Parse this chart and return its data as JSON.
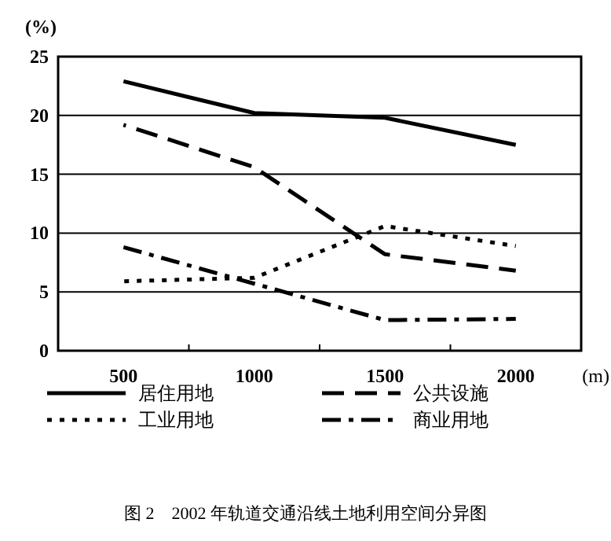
{
  "chart_data": {
    "type": "line",
    "title": "图 2　2002 年轨道交通沿线土地利用空间分异图",
    "ylabel": "(%)",
    "xlabel": "(m)",
    "categories": [
      "500",
      "1000",
      "1500",
      "2000"
    ],
    "ylim": [
      0,
      25
    ],
    "yticks": [
      0,
      5,
      10,
      15,
      20,
      25
    ],
    "grid": "y",
    "legend": "bottom",
    "marker": "none",
    "series": [
      {
        "name": "居住用地",
        "color": "#000000",
        "line_style": "solid",
        "values": [
          22.9,
          20.2,
          19.8,
          17.5
        ]
      },
      {
        "name": "公共设施",
        "color": "#000000",
        "line_style": "dashed",
        "values": [
          19.2,
          15.6,
          8.2,
          6.8
        ]
      },
      {
        "name": "工业用地",
        "color": "#000000",
        "line_style": "dotted",
        "values": [
          5.9,
          6.2,
          10.6,
          8.9
        ]
      },
      {
        "name": "商业用地",
        "color": "#000000",
        "line_style": "dashdot",
        "values": [
          8.8,
          5.7,
          2.6,
          2.7
        ]
      }
    ]
  }
}
